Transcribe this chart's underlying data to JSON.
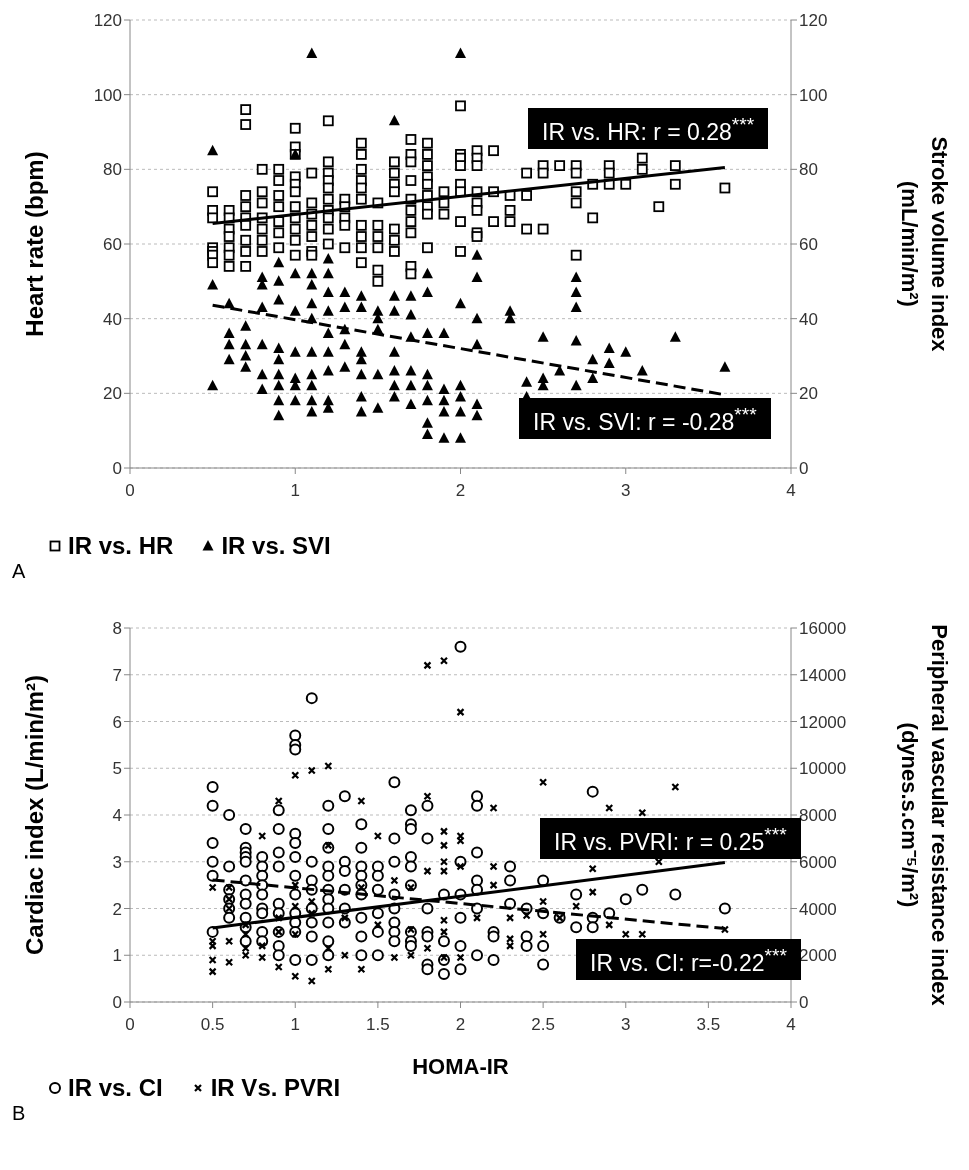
{
  "chart_data": [
    {
      "type": "scatter",
      "ylabel": "Heart rate (bpm)",
      "y2label": "Stroke volume index\n(mL/min/m²)",
      "xlim": [
        0,
        4
      ],
      "xticks": [
        0,
        1,
        2,
        3,
        4
      ],
      "ylim": [
        0,
        120
      ],
      "yticks": [
        0,
        20,
        40,
        60,
        80,
        100,
        120
      ],
      "y2lim": [
        0,
        120
      ],
      "y2ticks": [
        0,
        20,
        40,
        60,
        80,
        100,
        120
      ],
      "grid": "y",
      "legend": "bottom left",
      "annotations": [
        "IR vs. HR: r = 0.28$^{***}$",
        "IR vs. SVI: r = -0.28$^{***}$",
        "A"
      ],
      "series": [
        {
          "name": "IR vs. HR",
          "type": "scatter",
          "marker": "square",
          "color": "#000000",
          "x": [
            0.5,
            0.5,
            0.5,
            0.5,
            0.5,
            0.5,
            0.5,
            0.6,
            0.6,
            0.6,
            0.6,
            0.6,
            0.6,
            0.6,
            0.7,
            0.7,
            0.7,
            0.7,
            0.7,
            0.7,
            0.7,
            0.7,
            0.7,
            0.8,
            0.8,
            0.8,
            0.8,
            0.8,
            0.8,
            0.8,
            0.9,
            0.9,
            0.9,
            0.9,
            0.9,
            0.9,
            0.9,
            1,
            1,
            1,
            1,
            1,
            1,
            1,
            1,
            1,
            1,
            1,
            1.1,
            1.1,
            1.1,
            1.1,
            1.1,
            1.1,
            1.1,
            1.2,
            1.2,
            1.2,
            1.2,
            1.2,
            1.2,
            1.2,
            1.2,
            1.2,
            1.2,
            1.3,
            1.3,
            1.3,
            1.3,
            1.3,
            1.4,
            1.4,
            1.4,
            1.4,
            1.4,
            1.4,
            1.4,
            1.4,
            1.4,
            1.4,
            1.5,
            1.5,
            1.5,
            1.5,
            1.5,
            1.5,
            1.6,
            1.6,
            1.6,
            1.6,
            1.6,
            1.6,
            1.6,
            1.7,
            1.7,
            1.7,
            1.7,
            1.7,
            1.7,
            1.7,
            1.7,
            1.7,
            1.7,
            1.8,
            1.8,
            1.8,
            1.8,
            1.8,
            1.8,
            1.8,
            1.8,
            1.8,
            1.9,
            1.9,
            1.9,
            2,
            2,
            2,
            2,
            2,
            2,
            2,
            2,
            2.1,
            2.1,
            2.1,
            2.1,
            2.1,
            2.1,
            2.1,
            2.1,
            2.2,
            2.2,
            2.2,
            2.3,
            2.3,
            2.3,
            2.4,
            2.4,
            2.4,
            2.5,
            2.5,
            2.5,
            2.6,
            2.7,
            2.7,
            2.7,
            2.7,
            2.7,
            2.8,
            2.8,
            2.9,
            2.9,
            2.9,
            3,
            3.1,
            3.1,
            3.2,
            3.3,
            3.3,
            3.6
          ],
          "values": [
            74,
            69,
            67,
            59,
            58,
            57,
            55,
            69,
            67,
            64,
            62,
            59,
            57,
            54,
            96,
            92,
            73,
            70,
            67,
            65,
            61,
            58,
            54,
            80,
            74,
            71,
            67,
            64,
            61,
            58,
            80,
            77,
            73,
            70,
            66,
            63,
            59,
            91,
            86,
            84,
            78,
            76,
            74,
            70,
            67,
            64,
            61,
            57,
            79,
            71,
            68,
            65,
            62,
            58,
            57,
            93,
            82,
            79,
            77,
            75,
            72,
            69,
            67,
            64,
            60,
            72,
            70,
            67,
            65,
            59,
            87,
            84,
            80,
            77,
            75,
            72,
            65,
            62,
            59,
            55,
            71,
            65,
            62,
            59,
            53,
            50,
            82,
            79,
            76,
            74,
            64,
            61,
            58,
            88,
            84,
            82,
            77,
            72,
            69,
            66,
            63,
            54,
            52,
            87,
            84,
            81,
            78,
            76,
            73,
            70,
            68,
            59,
            74,
            71,
            68,
            97,
            84,
            83,
            81,
            76,
            74,
            66,
            58,
            85,
            83,
            81,
            74,
            71,
            69,
            63,
            62,
            85,
            74,
            66,
            73,
            69,
            66,
            79,
            73,
            64,
            81,
            79,
            64,
            81,
            81,
            79,
            74,
            71,
            57,
            76,
            67,
            81,
            79,
            76,
            76,
            83,
            80,
            70,
            81,
            76,
            75
          ]
        },
        {
          "name": "IR vs. SVI",
          "type": "scatter",
          "marker": "triangle",
          "axis": "y2",
          "color": "#000000",
          "x": [
            0.5,
            0.5,
            0.5,
            0.6,
            0.6,
            0.6,
            0.6,
            0.7,
            0.7,
            0.7,
            0.7,
            0.8,
            0.8,
            0.8,
            0.8,
            0.8,
            0.8,
            0.9,
            0.9,
            0.9,
            0.9,
            0.9,
            0.9,
            0.9,
            0.9,
            0.9,
            1,
            1,
            1,
            1,
            1,
            1,
            1,
            1.1,
            1.1,
            1.1,
            1.1,
            1.1,
            1.1,
            1.1,
            1.1,
            1.1,
            1.1,
            1.2,
            1.2,
            1.2,
            1.2,
            1.2,
            1.2,
            1.2,
            1.2,
            1.2,
            1.3,
            1.3,
            1.3,
            1.3,
            1.3,
            1.4,
            1.4,
            1.4,
            1.4,
            1.4,
            1.4,
            1.4,
            1.5,
            1.5,
            1.5,
            1.5,
            1.5,
            1.6,
            1.6,
            1.6,
            1.6,
            1.6,
            1.6,
            1.6,
            1.7,
            1.7,
            1.7,
            1.7,
            1.7,
            1.7,
            1.8,
            1.8,
            1.8,
            1.8,
            1.8,
            1.8,
            1.8,
            1.8,
            1.9,
            1.9,
            1.9,
            1.9,
            1.9,
            2,
            2,
            2,
            2,
            2,
            2,
            2.1,
            2.1,
            2.1,
            2.1,
            2.1,
            2.1,
            2.3,
            2.3,
            2.4,
            2.4,
            2.5,
            2.5,
            2.5,
            2.6,
            2.7,
            2.7,
            2.7,
            2.7,
            2.7,
            2.8,
            2.8,
            2.9,
            2.9,
            3,
            3.1,
            3.3,
            3.6
          ],
          "values": [
            85,
            49,
            22,
            44,
            36,
            33,
            29,
            38,
            33,
            30,
            27,
            51,
            49,
            43,
            33,
            25,
            21,
            55,
            50,
            45,
            32,
            29,
            25,
            22,
            18,
            14,
            84,
            52,
            42,
            31,
            24,
            22,
            18,
            111,
            52,
            49,
            44,
            40,
            31,
            25,
            22,
            18,
            15,
            56,
            52,
            47,
            42,
            36,
            31,
            26,
            18,
            16,
            47,
            43,
            37,
            33,
            27,
            46,
            43,
            31,
            29,
            25,
            19,
            15,
            42,
            40,
            37,
            25,
            16,
            93,
            46,
            42,
            31,
            26,
            22,
            19,
            46,
            41,
            35,
            26,
            22,
            17,
            52,
            47,
            36,
            25,
            22,
            18,
            12,
            9,
            36,
            21,
            18,
            15,
            8,
            111,
            44,
            22,
            19,
            15,
            8,
            57,
            51,
            40,
            33,
            17,
            14,
            42,
            40,
            23,
            19,
            35,
            24,
            22,
            26,
            51,
            47,
            43,
            34,
            22,
            29,
            24,
            32,
            28,
            31,
            26,
            35,
            27
          ]
        },
        {
          "type": "line",
          "marker": "none",
          "line_style": "solid",
          "color": "#000000",
          "x": [
            0.5,
            3.6
          ],
          "values": [
            65.5,
            80.5
          ]
        },
        {
          "type": "line",
          "marker": "none",
          "line_style": "dashed",
          "axis": "y2",
          "color": "#000000",
          "x": [
            0.5,
            3.6
          ],
          "values": [
            43.6,
            19.6
          ]
        }
      ]
    },
    {
      "type": "scatter",
      "xlabel": "HOMA-IR",
      "ylabel": "Cardiac index (L/min/m²)",
      "y2label": "Peripheral vascular resistance index\n(dynes.s.cm⁻⁵/m²)",
      "xlim": [
        0,
        4
      ],
      "xticks": [
        0,
        0.5,
        1,
        1.5,
        2,
        2.5,
        3,
        3.5,
        4
      ],
      "ylim": [
        0,
        8
      ],
      "yticks": [
        0,
        1,
        2,
        3,
        4,
        5,
        6,
        7,
        8
      ],
      "y2lim": [
        0,
        16000
      ],
      "y2ticks": [
        0,
        2000,
        4000,
        6000,
        8000,
        10000,
        12000,
        14000,
        16000
      ],
      "grid": "y",
      "legend": "bottom left",
      "annotations": [
        "IR vs. PVRI: r = 0.25$^{***}$",
        "IR vs. CI: r=-0.22$^{***}$",
        "B"
      ],
      "series": [
        {
          "name": "IR vs. CI",
          "type": "scatter",
          "marker": "circle",
          "color": "#000000",
          "x": [
            0.5,
            0.5,
            0.5,
            0.5,
            0.5,
            0.5,
            0.6,
            0.6,
            0.6,
            0.6,
            0.6,
            0.6,
            0.7,
            0.7,
            0.7,
            0.7,
            0.7,
            0.7,
            0.7,
            0.7,
            0.7,
            0.7,
            0.7,
            0.8,
            0.8,
            0.8,
            0.8,
            0.8,
            0.8,
            0.8,
            0.8,
            0.8,
            0.9,
            0.9,
            0.9,
            0.9,
            0.9,
            0.9,
            0.9,
            0.9,
            0.9,
            1,
            1,
            1,
            1,
            1,
            1,
            1,
            1,
            1,
            1,
            1,
            1,
            1.1,
            1.1,
            1.1,
            1.1,
            1.1,
            1.1,
            1.1,
            1.1,
            1.2,
            1.2,
            1.2,
            1.2,
            1.2,
            1.2,
            1.2,
            1.2,
            1.2,
            1.2,
            1.2,
            1.3,
            1.3,
            1.3,
            1.3,
            1.3,
            1.3,
            1.4,
            1.4,
            1.4,
            1.4,
            1.4,
            1.4,
            1.4,
            1.4,
            1.4,
            1.5,
            1.5,
            1.5,
            1.5,
            1.5,
            1.5,
            1.6,
            1.6,
            1.6,
            1.6,
            1.6,
            1.6,
            1.6,
            1.6,
            1.7,
            1.7,
            1.7,
            1.7,
            1.7,
            1.7,
            1.7,
            1.7,
            1.7,
            1.8,
            1.8,
            1.8,
            1.8,
            1.8,
            1.8,
            1.8,
            1.9,
            1.9,
            1.9,
            1.9,
            2,
            2,
            2,
            2,
            2,
            2,
            2.1,
            2.1,
            2.1,
            2.1,
            2.1,
            2.1,
            2.1,
            2.2,
            2.2,
            2.2,
            2.3,
            2.3,
            2.3,
            2.4,
            2.4,
            2.4,
            2.5,
            2.5,
            2.5,
            2.5,
            2.6,
            2.7,
            2.7,
            2.8,
            2.8,
            2.8,
            2.9,
            3,
            3.1,
            3.3,
            3.6
          ],
          "values": [
            4.6,
            4.2,
            3.4,
            3.0,
            2.7,
            1.5,
            4.0,
            2.9,
            2.4,
            2.2,
            2.0,
            1.8,
            3.7,
            3.3,
            3.2,
            3.1,
            3.0,
            2.6,
            2.3,
            2.1,
            1.8,
            1.6,
            1.3,
            3.1,
            2.9,
            2.7,
            2.5,
            2.3,
            2.0,
            1.9,
            1.5,
            1.3,
            4.1,
            3.7,
            3.2,
            2.9,
            2.1,
            1.9,
            1.5,
            1.2,
            1.0,
            5.7,
            5.5,
            5.4,
            3.6,
            3.4,
            3.1,
            2.7,
            2.3,
            1.9,
            1.7,
            1.5,
            0.9,
            6.5,
            3.0,
            2.6,
            2.4,
            2.0,
            1.7,
            1.4,
            0.9,
            4.2,
            3.7,
            3.3,
            2.9,
            2.7,
            2.4,
            2.2,
            2.0,
            1.7,
            1.3,
            1.0,
            4.4,
            3.0,
            2.8,
            2.4,
            2.0,
            1.7,
            3.8,
            3.3,
            2.9,
            2.7,
            2.5,
            2.3,
            1.8,
            1.4,
            1.0,
            2.9,
            2.7,
            2.4,
            1.9,
            1.5,
            1.0,
            4.7,
            3.5,
            3.0,
            2.3,
            2.0,
            1.7,
            1.5,
            1.3,
            4.1,
            3.8,
            3.7,
            3.1,
            2.9,
            2.5,
            1.5,
            1.3,
            1.2,
            4.2,
            3.5,
            2.0,
            1.5,
            1.4,
            0.8,
            0.7,
            2.3,
            1.3,
            0.9,
            0.6,
            7.6,
            3.0,
            2.3,
            1.8,
            1.2,
            0.7,
            4.4,
            4.2,
            3.2,
            2.6,
            2.4,
            2.0,
            1.0,
            1.5,
            1.4,
            0.9,
            2.9,
            2.6,
            2.1,
            2.0,
            1.4,
            1.2,
            2.6,
            1.9,
            1.2,
            0.8,
            1.8,
            2.3,
            1.6,
            4.5,
            1.8,
            1.6,
            1.9,
            2.2,
            2.4,
            2.3,
            2.0
          ]
        },
        {
          "name": "IR Vs. PVRI",
          "type": "scatter",
          "marker": "cross",
          "axis": "y2",
          "color": "#000000",
          "x": [
            0.5,
            0.5,
            0.5,
            0.5,
            0.5,
            0.6,
            0.6,
            0.6,
            0.6,
            0.6,
            0.7,
            0.7,
            0.7,
            0.7,
            0.8,
            0.8,
            0.8,
            0.9,
            0.9,
            0.9,
            0.9,
            1,
            1,
            1,
            1,
            1,
            1.1,
            1.1,
            1.1,
            1.1,
            1.2,
            1.2,
            1.2,
            1.2,
            1.3,
            1.3,
            1.4,
            1.4,
            1.4,
            1.5,
            1.5,
            1.6,
            1.6,
            1.7,
            1.7,
            1.7,
            1.8,
            1.8,
            1.8,
            1.8,
            1.9,
            1.9,
            1.9,
            1.9,
            1.9,
            1.9,
            1.9,
            1.9,
            2,
            2,
            2,
            2,
            2,
            2.1,
            2.2,
            2.2,
            2.2,
            2.3,
            2.3,
            2.3,
            2.4,
            2.5,
            2.5,
            2.5,
            2.6,
            2.7,
            2.8,
            2.8,
            2.9,
            2.9,
            3,
            3.1,
            3.1,
            3.2,
            3.3,
            3.6
          ],
          "values": [
            4900,
            2600,
            2400,
            1800,
            1300,
            4900,
            4400,
            4000,
            2600,
            1700,
            3300,
            2900,
            2300,
            2000,
            7100,
            2400,
            1900,
            8600,
            3600,
            3000,
            1500,
            9700,
            5000,
            4100,
            2900,
            1100,
            9900,
            4300,
            3800,
            900,
            10100,
            6700,
            2300,
            1400,
            3600,
            2000,
            8600,
            4900,
            1400,
            7100,
            3300,
            5200,
            1900,
            4900,
            3100,
            2000,
            14400,
            8800,
            5600,
            2300,
            14600,
            7300,
            6700,
            6000,
            5600,
            3500,
            3000,
            1900,
            12400,
            7100,
            6900,
            5800,
            1900,
            3600,
            8300,
            5800,
            5000,
            3600,
            2700,
            2400,
            3700,
            9400,
            4300,
            2900,
            3600,
            4100,
            5700,
            4700,
            8300,
            3300,
            2900,
            8100,
            2900,
            6000,
            9200,
            3100
          ]
        },
        {
          "type": "line",
          "marker": "none",
          "line_style": "solid",
          "axis": "y2",
          "color": "#000000",
          "x": [
            0.5,
            3.6
          ],
          "values": [
            3170,
            5970
          ]
        },
        {
          "type": "line",
          "marker": "none",
          "line_style": "dashed",
          "color": "#000000",
          "x": [
            0.5,
            3.6
          ],
          "values": [
            2.61,
            1.57
          ]
        }
      ]
    }
  ]
}
